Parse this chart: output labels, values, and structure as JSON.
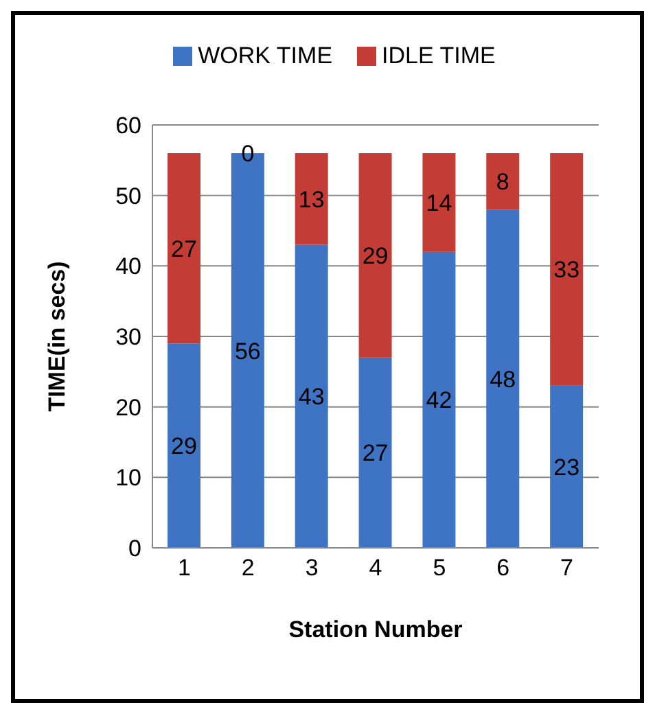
{
  "chart_data": {
    "type": "bar",
    "stacked": true,
    "xlabel": "Station Number",
    "ylabel": "TIME(in secs)",
    "categories": [
      "1",
      "2",
      "3",
      "4",
      "5",
      "6",
      "7"
    ],
    "series": [
      {
        "name": "WORK TIME",
        "color": "#3f74c4",
        "values": [
          29,
          56,
          43,
          27,
          42,
          48,
          23
        ]
      },
      {
        "name": "IDLE TIME",
        "color": "#c43c36",
        "values": [
          27,
          0,
          13,
          29,
          14,
          8,
          33
        ]
      }
    ],
    "ylim": [
      0,
      60
    ],
    "yticks": [
      0,
      10,
      20,
      30,
      40,
      50,
      60
    ],
    "grid": "y",
    "legend": "top",
    "data_labels": true
  }
}
